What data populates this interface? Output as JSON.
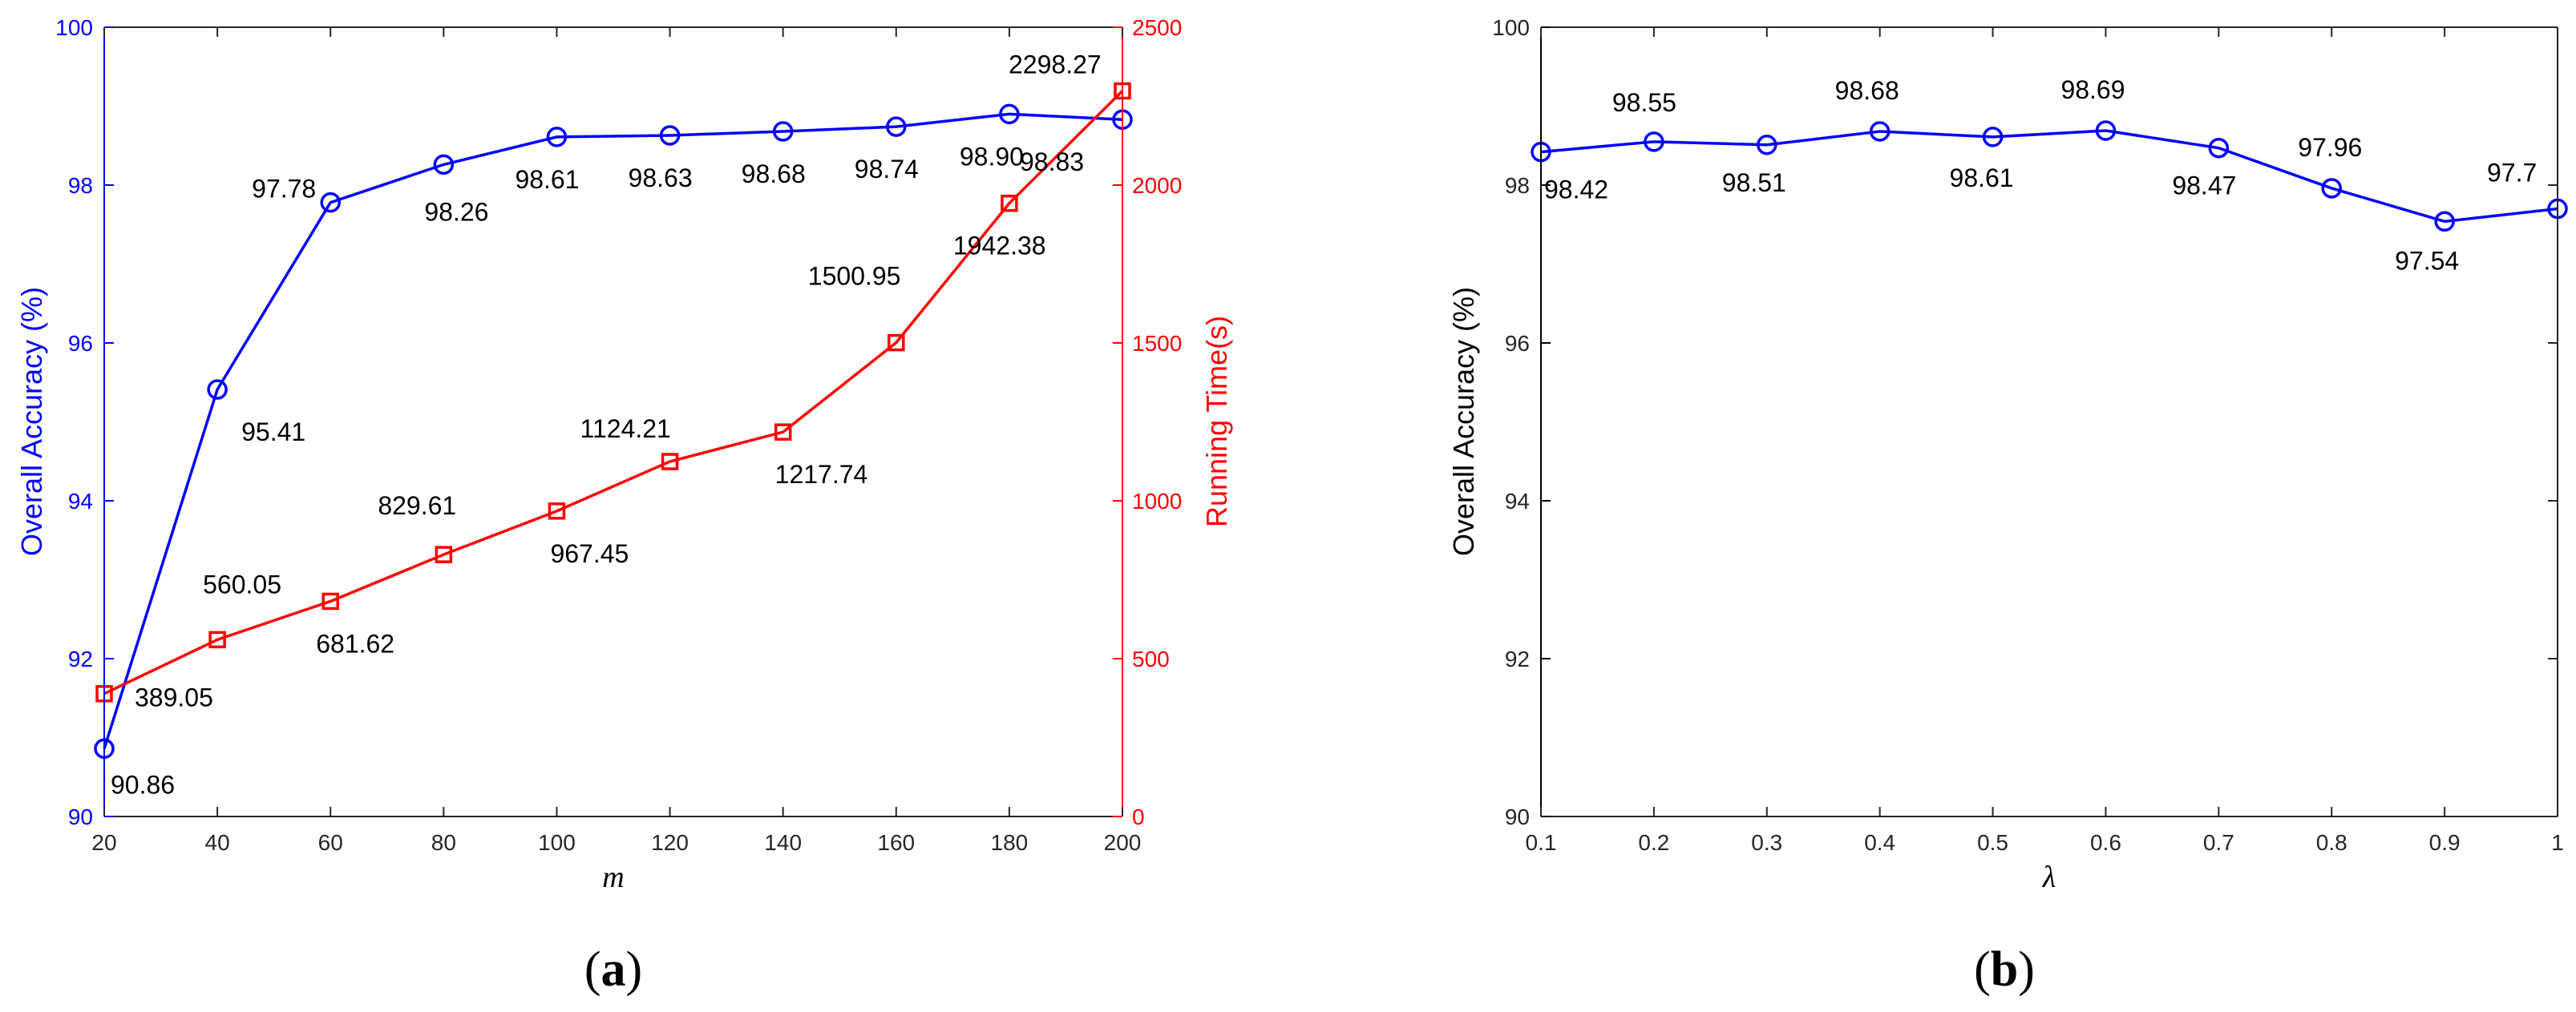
{
  "chart_data": [
    {
      "type": "line",
      "caption": {
        "open": "(",
        "letter": "a",
        "close": ")"
      },
      "xlabel": "m",
      "x": [
        20,
        40,
        60,
        80,
        100,
        120,
        140,
        160,
        180,
        200
      ],
      "xticks": [
        "20",
        "40",
        "60",
        "80",
        "100",
        "120",
        "140",
        "160",
        "180",
        "200"
      ],
      "xlim": [
        20,
        200
      ],
      "left_axis": {
        "label": "Overall Accuracy (%)",
        "color": "#0000ff",
        "ylim": [
          90,
          100
        ],
        "ticks": [
          "90",
          "92",
          "94",
          "96",
          "98",
          "100"
        ]
      },
      "right_axis": {
        "label": "Running Time(s)",
        "color": "#ff0000",
        "ylim": [
          0,
          2500
        ],
        "ticks": [
          "0",
          "500",
          "1000",
          "1500",
          "2000",
          "2500"
        ]
      },
      "series": [
        {
          "name": "Overall Accuracy",
          "axis": "left",
          "marker": "circle",
          "color": "#0000ff",
          "values": [
            90.86,
            95.41,
            97.78,
            98.26,
            98.61,
            98.63,
            98.68,
            98.74,
            98.9,
            98.83
          ],
          "labels": [
            "90.86",
            "95.41",
            "97.78",
            "98.26",
            "98.61",
            "98.63",
            "98.68",
            "98.74",
            "98.90",
            "98.83"
          ]
        },
        {
          "name": "Running Time",
          "axis": "right",
          "marker": "square",
          "color": "#ff0000",
          "values": [
            389.05,
            560.05,
            681.62,
            829.61,
            967.45,
            1124.21,
            1217.74,
            1500.95,
            1942.38,
            2298.27
          ],
          "labels": [
            "389.05",
            "560.05",
            "681.62",
            "829.61",
            "967.45",
            "1124.21",
            "1217.74",
            "1500.95",
            "1942.38",
            "2298.27"
          ]
        }
      ]
    },
    {
      "type": "line",
      "caption": {
        "open": "(",
        "letter": "b",
        "close": ")"
      },
      "xlabel": "λ",
      "x": [
        0.1,
        0.2,
        0.3,
        0.4,
        0.5,
        0.6,
        0.7,
        0.8,
        0.9,
        1.0
      ],
      "xticks": [
        "0.1",
        "0.2",
        "0.3",
        "0.4",
        "0.5",
        "0.6",
        "0.7",
        "0.8",
        "0.9",
        "1"
      ],
      "xlim": [
        0.1,
        1.0
      ],
      "left_axis": {
        "label": "Overall Accuracy (%)",
        "color": "#000000",
        "ylim": [
          90,
          100
        ],
        "ticks": [
          "90",
          "92",
          "94",
          "96",
          "98",
          "100"
        ]
      },
      "series": [
        {
          "name": "Overall Accuracy",
          "axis": "left",
          "marker": "circle",
          "color": "#0000ff",
          "values": [
            98.42,
            98.55,
            98.51,
            98.68,
            98.61,
            98.69,
            98.47,
            97.96,
            97.54,
            97.7
          ],
          "labels": [
            "98.42",
            "98.55",
            "98.51",
            "98.68",
            "98.61",
            "98.69",
            "98.47",
            "97.96",
            "97.54",
            "97.7"
          ]
        }
      ]
    }
  ]
}
